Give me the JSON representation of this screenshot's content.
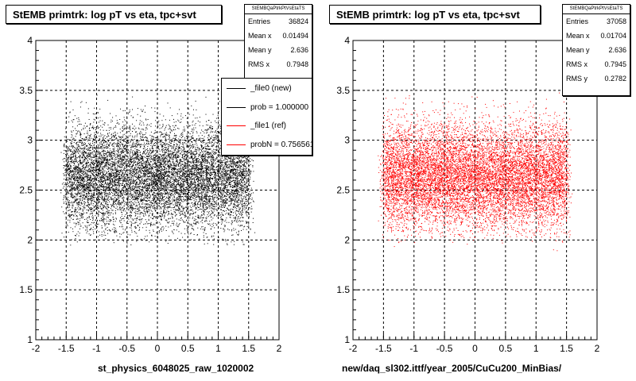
{
  "colors": {
    "new": "#000000",
    "ref": "#ff0000"
  },
  "left_pad": {
    "title": "StEMB primtrk: log pT vs eta, tpc+svt",
    "stats": {
      "name": "StEMBQaPtrkPtVsEtaTS",
      "rows": [
        {
          "label": "Entries",
          "value": "36824"
        },
        {
          "label": "Mean x",
          "value": "0.01494"
        },
        {
          "label": "Mean y",
          "value": "2.636"
        },
        {
          "label": "RMS x",
          "value": "0.7948"
        }
      ]
    },
    "legend": [
      {
        "label": "_file0 (new)",
        "color": "#000000"
      },
      {
        "label": "prob = 1.000000",
        "color": "#000000"
      },
      {
        "label": "_file1 (ref)",
        "color": "#ff0000"
      },
      {
        "label": "probN = 0.756561",
        "color": "#ff0000"
      }
    ],
    "xtitle": "st_physics_6048025_raw_1020002"
  },
  "right_pad": {
    "title": "StEMB primtrk: log pT vs eta, tpc+svt",
    "stats": {
      "name": "StEMBQaPtrkPtVsEtaTS",
      "rows": [
        {
          "label": "Entries",
          "value": "37058"
        },
        {
          "label": "Mean x",
          "value": "0.01704"
        },
        {
          "label": "Mean y",
          "value": "2.636"
        },
        {
          "label": "RMS x",
          "value": "0.7945"
        },
        {
          "label": "RMS y",
          "value": "0.2782"
        }
      ]
    },
    "xtitle": "new/daq_sl302.ittf/year_2005/CuCu200_MinBias/"
  },
  "chart_data": [
    {
      "type": "scatter",
      "title": "StEMB primtrk: log pT vs eta, tpc+svt",
      "xlabel": "st_physics_6048025_raw_1020002",
      "ylabel": "",
      "xlim": [
        -2,
        2
      ],
      "ylim": [
        1,
        4
      ],
      "xticks": [
        "-2",
        "-1.5",
        "-1",
        "-0.5",
        "0",
        "0.5",
        "1",
        "1.5",
        "2"
      ],
      "yticks": [
        "1",
        "1.5",
        "2",
        "2.5",
        "3",
        "3.5",
        "4"
      ],
      "grid": true,
      "series": [
        {
          "name": "_file0 (new)",
          "color": "#000000",
          "entries": 36824,
          "mean_x": 0.01494,
          "mean_y": 2.636,
          "rms_x": 0.7948,
          "x_range": [
            -1.6,
            1.6
          ],
          "y_range": [
            1.95,
            3.4
          ]
        }
      ]
    },
    {
      "type": "scatter",
      "title": "StEMB primtrk: log pT vs eta, tpc+svt",
      "xlabel": "new/daq_sl302.ittf/year_2005/CuCu200_MinBias/",
      "ylabel": "",
      "xlim": [
        -2,
        2
      ],
      "ylim": [
        1,
        4
      ],
      "xticks": [
        "-2",
        "-1.5",
        "-1",
        "-0.5",
        "0",
        "0.5",
        "1",
        "1.5",
        "2"
      ],
      "yticks": [
        "1",
        "1.5",
        "2",
        "2.5",
        "3",
        "3.5",
        "4"
      ],
      "grid": true,
      "series": [
        {
          "name": "_file1 (ref)",
          "color": "#ff0000",
          "entries": 37058,
          "mean_x": 0.01704,
          "mean_y": 2.636,
          "rms_x": 0.7945,
          "rms_y": 0.2782,
          "x_range": [
            -1.6,
            1.6
          ],
          "y_range": [
            1.95,
            3.4
          ]
        }
      ]
    }
  ]
}
